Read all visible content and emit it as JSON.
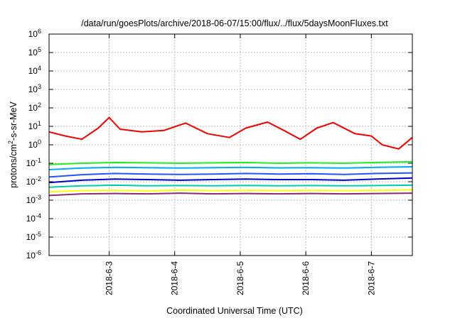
{
  "chart_data": {
    "type": "line",
    "title": "/data/run/goesPlots/archive/2018-06-07/15:00/flux/../flux/5daysMoonFluxes.txt",
    "xlabel": "Coordinated Universal Time (UTC)",
    "ylabel": {
      "base": "protons/cm",
      "sup": "2",
      "rest": "-s-sr-MeV"
    },
    "yscale": "log",
    "ylim": [
      1e-06,
      1000000.0
    ],
    "xlim": [
      "2018-06-02T02:00",
      "2018-06-07T15:00"
    ],
    "grid": true,
    "legend": "none",
    "y_ticks": [
      {
        "value": 1e-06,
        "label": "10",
        "exp": "-6"
      },
      {
        "value": 1e-05,
        "label": "10",
        "exp": "-5"
      },
      {
        "value": 0.0001,
        "label": "10",
        "exp": "-4"
      },
      {
        "value": 0.001,
        "label": "10",
        "exp": "-3"
      },
      {
        "value": 0.01,
        "label": "10",
        "exp": "-2"
      },
      {
        "value": 0.1,
        "label": "10",
        "exp": "-1"
      },
      {
        "value": 1,
        "label": "10",
        "exp": "0"
      },
      {
        "value": 10,
        "label": "10",
        "exp": "1"
      },
      {
        "value": 100,
        "label": "10",
        "exp": "2"
      },
      {
        "value": 1000,
        "label": "10",
        "exp": "3"
      },
      {
        "value": 10000,
        "label": "10",
        "exp": "4"
      },
      {
        "value": 100000,
        "label": "10",
        "exp": "5"
      },
      {
        "value": 1000000,
        "label": "10",
        "exp": "6"
      }
    ],
    "x_ticks": [
      {
        "value": "2018-06-03T00:00",
        "label": "2018-6-3"
      },
      {
        "value": "2018-06-04T00:00",
        "label": "2018-6-4"
      },
      {
        "value": "2018-06-05T00:00",
        "label": "2018-6-5"
      },
      {
        "value": "2018-06-06T00:00",
        "label": "2018-6-6"
      },
      {
        "value": "2018-06-07T00:00",
        "label": "2018-6-7"
      }
    ],
    "series": [
      {
        "color": "#8b2a7a",
        "x": [
          "2018-06-02T02:00",
          "2018-06-02T14:00",
          "2018-06-03T02:00",
          "2018-06-03T14:00",
          "2018-06-04T02:00",
          "2018-06-04T14:00",
          "2018-06-05T02:00",
          "2018-06-05T14:00",
          "2018-06-06T02:00",
          "2018-06-06T14:00",
          "2018-06-07T02:00",
          "2018-06-07T15:00"
        ],
        "y": [
          0.0018,
          0.0022,
          0.0023,
          0.0022,
          0.0024,
          0.0022,
          0.0023,
          0.0022,
          0.0023,
          0.0022,
          0.0023,
          0.0024
        ]
      },
      {
        "color": "#ffff00",
        "x": [
          "2018-06-02T02:00",
          "2018-06-02T14:00",
          "2018-06-03T02:00",
          "2018-06-03T14:00",
          "2018-06-04T02:00",
          "2018-06-04T14:00",
          "2018-06-05T02:00",
          "2018-06-05T14:00",
          "2018-06-06T02:00",
          "2018-06-06T14:00",
          "2018-06-07T02:00",
          "2018-06-07T15:00"
        ],
        "y": [
          0.0028,
          0.0033,
          0.0034,
          0.0032,
          0.0035,
          0.0033,
          0.0034,
          0.0033,
          0.0034,
          0.0033,
          0.0034,
          0.0036
        ]
      },
      {
        "color": "#00ccaa",
        "x": [
          "2018-06-02T02:00",
          "2018-06-02T14:00",
          "2018-06-03T02:00",
          "2018-06-03T14:00",
          "2018-06-04T02:00",
          "2018-06-04T14:00",
          "2018-06-05T02:00",
          "2018-06-05T14:00",
          "2018-06-06T02:00",
          "2018-06-06T14:00",
          "2018-06-07T02:00",
          "2018-06-07T15:00"
        ],
        "y": [
          0.005,
          0.006,
          0.0065,
          0.006,
          0.0062,
          0.006,
          0.0063,
          0.006,
          0.0062,
          0.006,
          0.0062,
          0.0065
        ]
      },
      {
        "color": "#0000cc",
        "x": [
          "2018-06-02T02:00",
          "2018-06-02T14:00",
          "2018-06-03T02:00",
          "2018-06-03T14:00",
          "2018-06-04T02:00",
          "2018-06-04T14:00",
          "2018-06-05T02:00",
          "2018-06-05T14:00",
          "2018-06-06T02:00",
          "2018-06-06T14:00",
          "2018-06-07T02:00",
          "2018-06-07T15:00"
        ],
        "y": [
          0.009,
          0.012,
          0.014,
          0.013,
          0.012,
          0.013,
          0.014,
          0.013,
          0.013,
          0.012,
          0.014,
          0.016
        ]
      },
      {
        "color": "#2255ff",
        "x": [
          "2018-06-02T02:00",
          "2018-06-02T14:00",
          "2018-06-03T02:00",
          "2018-06-03T14:00",
          "2018-06-04T02:00",
          "2018-06-04T14:00",
          "2018-06-05T02:00",
          "2018-06-05T14:00",
          "2018-06-06T02:00",
          "2018-06-06T14:00",
          "2018-06-07T02:00",
          "2018-06-07T15:00"
        ],
        "y": [
          0.018,
          0.024,
          0.028,
          0.026,
          0.025,
          0.026,
          0.028,
          0.026,
          0.027,
          0.025,
          0.028,
          0.03
        ]
      },
      {
        "color": "#00aaff",
        "x": [
          "2018-06-02T02:00",
          "2018-06-02T14:00",
          "2018-06-03T02:00",
          "2018-06-03T14:00",
          "2018-06-04T02:00",
          "2018-06-04T14:00",
          "2018-06-05T02:00",
          "2018-06-05T14:00",
          "2018-06-06T02:00",
          "2018-06-06T14:00",
          "2018-06-07T02:00",
          "2018-06-07T15:00"
        ],
        "y": [
          0.045,
          0.055,
          0.06,
          0.058,
          0.055,
          0.057,
          0.06,
          0.056,
          0.058,
          0.055,
          0.06,
          0.065
        ]
      },
      {
        "color": "#22ee22",
        "x": [
          "2018-06-02T02:00",
          "2018-06-02T14:00",
          "2018-06-03T02:00",
          "2018-06-03T14:00",
          "2018-06-04T02:00",
          "2018-06-04T14:00",
          "2018-06-05T02:00",
          "2018-06-05T14:00",
          "2018-06-06T02:00",
          "2018-06-06T14:00",
          "2018-06-07T02:00",
          "2018-06-07T15:00"
        ],
        "y": [
          0.085,
          0.1,
          0.11,
          0.105,
          0.1,
          0.105,
          0.11,
          0.1,
          0.105,
          0.1,
          0.11,
          0.12
        ]
      },
      {
        "color": "#ee0000",
        "x": [
          "2018-06-02T02:00",
          "2018-06-02T08:00",
          "2018-06-02T14:00",
          "2018-06-02T20:00",
          "2018-06-03T00:00",
          "2018-06-03T04:00",
          "2018-06-03T12:00",
          "2018-06-03T20:00",
          "2018-06-04T04:00",
          "2018-06-04T12:00",
          "2018-06-04T20:00",
          "2018-06-05T02:00",
          "2018-06-05T10:00",
          "2018-06-05T16:00",
          "2018-06-05T22:00",
          "2018-06-06T04:00",
          "2018-06-06T10:00",
          "2018-06-06T18:00",
          "2018-06-07T00:00",
          "2018-06-07T04:00",
          "2018-06-07T10:00",
          "2018-06-07T15:00"
        ],
        "y": [
          5,
          3,
          2,
          8,
          30,
          7,
          5,
          6,
          15,
          4,
          2.5,
          8,
          17,
          6,
          2,
          8,
          16,
          4,
          3,
          1,
          0.6,
          2.5
        ]
      }
    ]
  }
}
